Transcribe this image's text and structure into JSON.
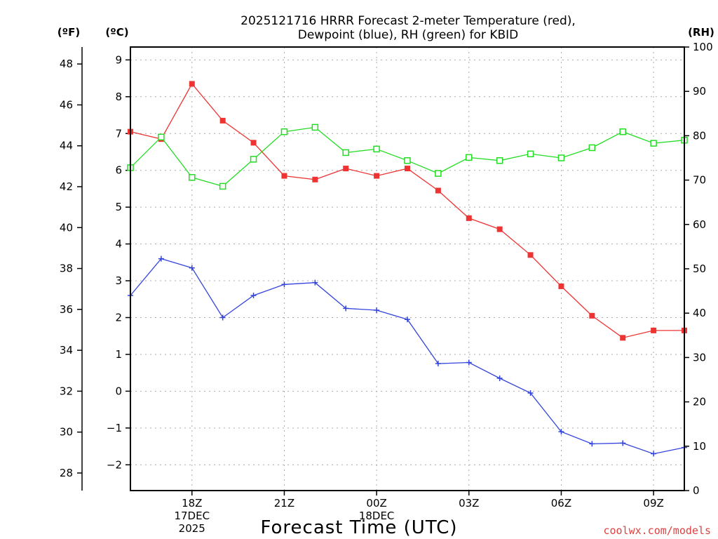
{
  "chart_data": {
    "type": "line",
    "title_lines": [
      "2025121716 HRRR Forecast 2-meter Temperature (red),",
      "Dewpoint (blue), RH (green) for KBID"
    ],
    "xlabel": "Forecast Time (UTC)",
    "credit": "coolwx.com/models",
    "unit_labels": {
      "fahrenheit": "(ºF)",
      "celsius": "(ºC)",
      "rh": "(RH)"
    },
    "x_hours": [
      16,
      17,
      18,
      19,
      20,
      21,
      22,
      23,
      24,
      25,
      26,
      27,
      28,
      29,
      30,
      31,
      32,
      33,
      34
    ],
    "x_range": [
      16,
      34
    ],
    "x_ticks": [
      {
        "hour": 18,
        "lines": [
          "18Z",
          "17DEC",
          "2025"
        ]
      },
      {
        "hour": 21,
        "lines": [
          "21Z"
        ]
      },
      {
        "hour": 24,
        "lines": [
          "00Z",
          "18DEC"
        ]
      },
      {
        "hour": 27,
        "lines": [
          "03Z"
        ]
      },
      {
        "hour": 30,
        "lines": [
          "06Z"
        ]
      },
      {
        "hour": 33,
        "lines": [
          "09Z"
        ]
      }
    ],
    "celsius_axis": {
      "range": [
        -2.7,
        9.35
      ],
      "ticks": [
        -2,
        -1,
        0,
        1,
        2,
        3,
        4,
        5,
        6,
        7,
        8,
        9
      ]
    },
    "fahrenheit_axis": {
      "ticks": [
        28,
        30,
        32,
        34,
        36,
        38,
        40,
        42,
        44,
        46,
        48
      ]
    },
    "rh_axis": {
      "range": [
        0,
        100
      ],
      "ticks": [
        0,
        10,
        20,
        30,
        40,
        50,
        60,
        70,
        80,
        90,
        100
      ]
    },
    "series": [
      {
        "name": "2-meter Temperature",
        "color": "#ee3333",
        "marker": "filled-square",
        "axis": "celsius",
        "values": [
          7.05,
          6.85,
          8.35,
          7.35,
          6.75,
          5.85,
          5.75,
          6.05,
          5.85,
          6.05,
          5.45,
          4.7,
          4.4,
          3.7,
          2.85,
          2.05,
          1.45,
          1.65,
          1.65
        ]
      },
      {
        "name": "Dewpoint",
        "color": "#3344dd",
        "marker": "plus",
        "axis": "celsius",
        "values": [
          2.6,
          3.6,
          3.35,
          2.0,
          2.6,
          2.9,
          2.95,
          2.25,
          2.2,
          1.95,
          0.75,
          0.78,
          0.35,
          -0.05,
          -1.1,
          -1.43,
          -1.41,
          -1.7,
          -1.53
        ]
      },
      {
        "name": "Relative Humidity",
        "color": "#22dd22",
        "marker": "open-square",
        "axis": "rh",
        "values": [
          72.8,
          79.7,
          70.6,
          68.6,
          74.7,
          80.9,
          81.9,
          76.2,
          77.0,
          74.4,
          71.5,
          75.1,
          74.4,
          75.9,
          75.0,
          77.3,
          80.9,
          78.3,
          79.0
        ]
      }
    ]
  }
}
